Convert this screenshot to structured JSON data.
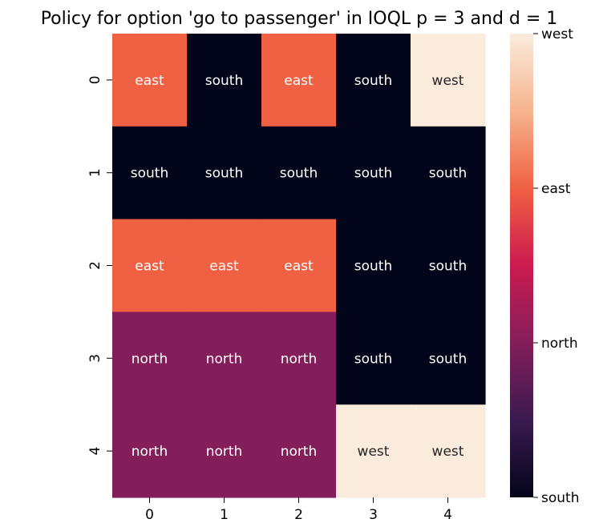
{
  "chart_data": {
    "type": "heatmap",
    "title": "Policy for option 'go to passenger' in IOQL p = 3 and d = 1",
    "xlabel": "",
    "ylabel": "",
    "x_ticks": [
      "0",
      "1",
      "2",
      "3",
      "4"
    ],
    "y_ticks": [
      "0",
      "1",
      "2",
      "3",
      "4"
    ],
    "cells": [
      [
        "east",
        "south",
        "east",
        "south",
        "west"
      ],
      [
        "south",
        "south",
        "south",
        "south",
        "south"
      ],
      [
        "east",
        "east",
        "east",
        "south",
        "south"
      ],
      [
        "north",
        "north",
        "north",
        "south",
        "south"
      ],
      [
        "north",
        "north",
        "north",
        "west",
        "west"
      ]
    ],
    "colorbar": {
      "labels_top_to_bottom": [
        "west",
        "east",
        "north",
        "south"
      ],
      "colors": {
        "south": "#03051a",
        "north": "#841e5a",
        "east": "#f06043",
        "west": "#faebdd"
      },
      "gradient_stops_bottom_to_top": [
        "#03051a",
        "#3a1a4f",
        "#841e5a",
        "#cb1b4f",
        "#f06043",
        "#f6b48f",
        "#faebdd"
      ]
    },
    "light_text_values": [
      "east",
      "south",
      "north"
    ],
    "dark_text_values": [
      "west"
    ],
    "grid": false
  }
}
